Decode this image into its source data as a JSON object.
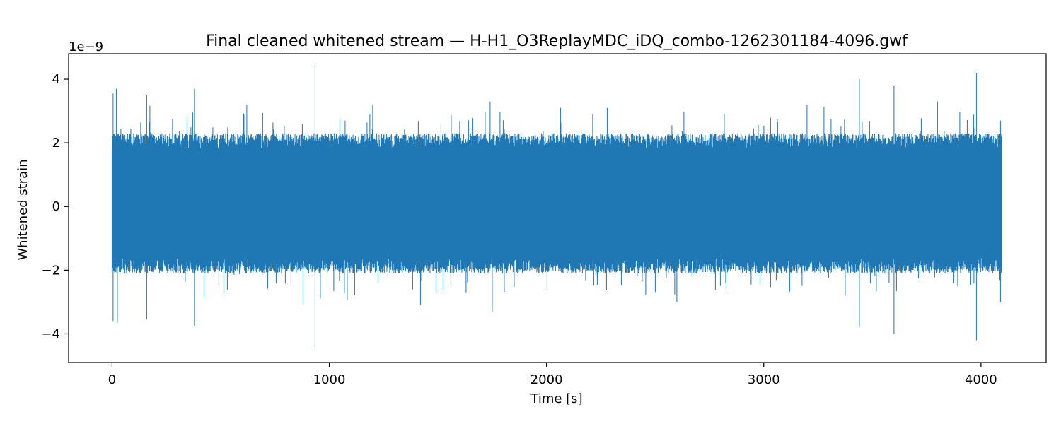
{
  "chart_data": {
    "type": "line",
    "title": "Final cleaned whitened stream — H-H1_O3ReplayMDC_iDQ_combo-1262301184-4096.gwf",
    "xlabel": "Time [s]",
    "ylabel": "Whitened strain",
    "y_offset_label": "1e−9",
    "xlim": [
      -200,
      4300
    ],
    "ylim": [
      -4.9,
      4.8
    ],
    "x_ticks": [
      0,
      1000,
      2000,
      3000,
      4000
    ],
    "x_tick_labels": [
      "0",
      "1000",
      "2000",
      "3000",
      "4000"
    ],
    "y_ticks": [
      -4,
      -2,
      0,
      2,
      4
    ],
    "y_tick_labels": [
      "−4",
      "−2",
      "0",
      "2",
      "4"
    ],
    "grid": false,
    "legend": "none",
    "line_color": "#1f77b4",
    "series": [
      {
        "x_range": [
          0,
          4096
        ],
        "core_band": [
          -1.6,
          1.8
        ],
        "typical_max": 2.3,
        "typical_min": -2.1,
        "spikes": [
          {
            "x": 5,
            "y": 3.55
          },
          {
            "x": 5,
            "y": -3.6
          },
          {
            "x": 20,
            "y": 3.7
          },
          {
            "x": 25,
            "y": -3.65
          },
          {
            "x": 160,
            "y": 3.5
          },
          {
            "x": 160,
            "y": -3.55
          },
          {
            "x": 380,
            "y": 3.7
          },
          {
            "x": 380,
            "y": -3.75
          },
          {
            "x": 620,
            "y": 3.2
          },
          {
            "x": 880,
            "y": -3.1
          },
          {
            "x": 935,
            "y": 4.4
          },
          {
            "x": 935,
            "y": -4.45
          },
          {
            "x": 1200,
            "y": 3.2
          },
          {
            "x": 1420,
            "y": -3.1
          },
          {
            "x": 1740,
            "y": 3.3
          },
          {
            "x": 1750,
            "y": -3.3
          },
          {
            "x": 2280,
            "y": 3.1
          },
          {
            "x": 2600,
            "y": -3.0
          },
          {
            "x": 3200,
            "y": 3.2
          },
          {
            "x": 3440,
            "y": 4.0
          },
          {
            "x": 3440,
            "y": -3.8
          },
          {
            "x": 3600,
            "y": 3.8
          },
          {
            "x": 3600,
            "y": -4.0
          },
          {
            "x": 3800,
            "y": 3.3
          },
          {
            "x": 3980,
            "y": 4.2
          },
          {
            "x": 3980,
            "y": -4.2
          },
          {
            "x": 4090,
            "y": 2.7
          },
          {
            "x": 4090,
            "y": -3.0
          }
        ]
      }
    ]
  }
}
